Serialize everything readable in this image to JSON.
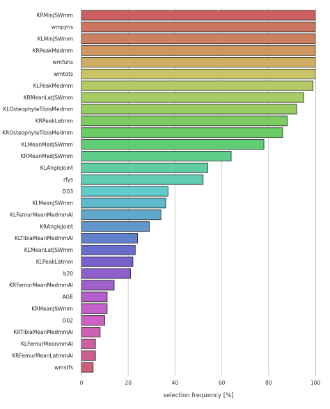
{
  "chart_data": {
    "type": "bar",
    "orientation": "horizontal",
    "xlabel": "selection frequency [%]",
    "xlim": [
      0,
      100
    ],
    "xticks": [
      0,
      20,
      40,
      60,
      80,
      100
    ],
    "grid": "vertical",
    "legend": "none",
    "categories": [
      "KRMinJSWmm",
      "wmpyns",
      "KLMinJSWmm",
      "KRPeakMedmm",
      "wmfuns",
      "wmtots",
      "KLPeakMedmm",
      "KRMeanLatJSWmm",
      "KLOsteophyteTibiaMedmm",
      "KRPeakLatmm",
      "KROsteophyteTibiaMedmm",
      "KLMeanMedJSWmm",
      "KRMeanMedJSWmm",
      "KLAngleJoint",
      "rfys",
      "D03",
      "KLMeanJSWmm",
      "KLFemurMeanMedmmAl",
      "KRAngleJoint",
      "KLTibiaMeanMedmmAl",
      "KLMeanLatJSWmm",
      "KLPeakLatmm",
      "b20",
      "KRFemurMeanMedmmAl",
      "AGE",
      "KRMeanJSWmm",
      "D02",
      "KRTibiaMeanMedmmAl",
      "KLFemurMeanmmAl",
      "KRFemurMeanLatmmAl",
      "wmstfs"
    ],
    "values": [
      100,
      100,
      100,
      100,
      100,
      100,
      99,
      95,
      92,
      88,
      86,
      78,
      64,
      54,
      52,
      37,
      36,
      34,
      29,
      24,
      23,
      22,
      21,
      14,
      11,
      11,
      10,
      8,
      6,
      6,
      5
    ],
    "colors": [
      "#cc6060",
      "#cc7560",
      "#cc8060",
      "#cf9660",
      "#cfae64",
      "#c9c466",
      "#b4c864",
      "#a6cc62",
      "#96cc62",
      "#7ccc62",
      "#6acc64",
      "#60cc74",
      "#60cc8a",
      "#60cca2",
      "#60ccb2",
      "#60cccc",
      "#60b8cc",
      "#60a8cc",
      "#6096cc",
      "#6080cc",
      "#6a6ccc",
      "#7a60cc",
      "#8e60cc",
      "#a060cc",
      "#b460cc",
      "#c460cc",
      "#cc60c4",
      "#cc60b2",
      "#cc60a0",
      "#cc6090",
      "#cc6078"
    ]
  }
}
